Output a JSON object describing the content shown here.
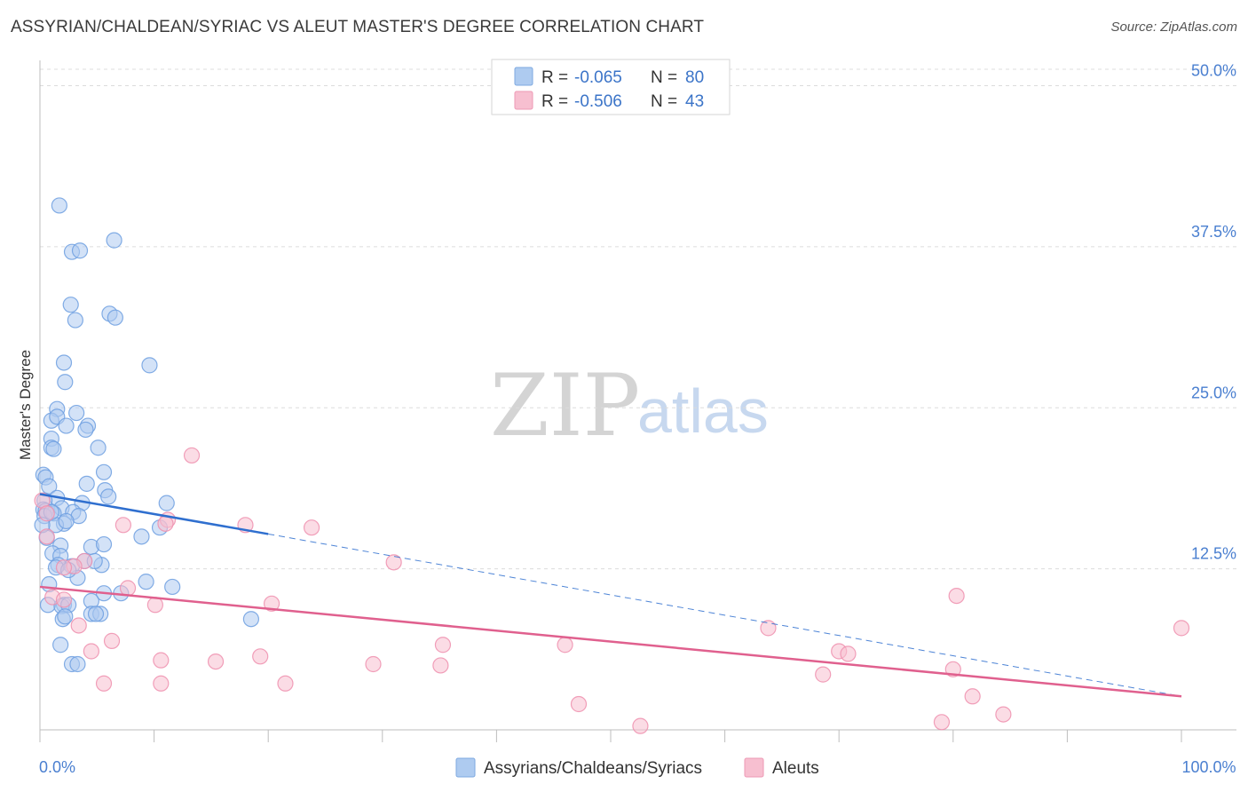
{
  "header": {
    "title": "ASSYRIAN/CHALDEAN/SYRIAC VS ALEUT MASTER'S DEGREE CORRELATION CHART",
    "source": "Source: ZipAtlas.com"
  },
  "watermark": {
    "zip": "ZIP",
    "atlas": "atlas"
  },
  "legend": {
    "rows": [
      {
        "r_label": "R = ",
        "r_value": "-0.065",
        "n_label": "N = ",
        "n_value": "80",
        "fill": "#aecbf0",
        "stroke": "#7ea9e0"
      },
      {
        "r_label": "R = ",
        "r_value": "-0.506",
        "n_label": "N = ",
        "n_value": "43",
        "fill": "#f7bfd0",
        "stroke": "#ee9ab5"
      }
    ]
  },
  "bottom_legend": {
    "items": [
      {
        "label": "Assyrians/Chaldeans/Syriacs",
        "fill": "#aecbf0",
        "stroke": "#7ea9e0"
      },
      {
        "label": "Aleuts",
        "fill": "#f7bfd0",
        "stroke": "#ee9ab5"
      }
    ]
  },
  "chart_data": {
    "type": "scatter",
    "title": "ASSYRIAN/CHALDEAN/SYRIAC VS ALEUT MASTER'S DEGREE CORRELATION CHART",
    "xlabel": "",
    "ylabel": "Master's Degree",
    "xlim": [
      0,
      100
    ],
    "ylim": [
      0,
      52
    ],
    "x_tick_labels": [
      {
        "value": 0,
        "label": "0.0%"
      },
      {
        "value": 100,
        "label": "100.0%"
      }
    ],
    "y_tick_labels": [
      {
        "value": 12.5,
        "label": "12.5%"
      },
      {
        "value": 25,
        "label": "25.0%"
      },
      {
        "value": 37.5,
        "label": "37.5%"
      },
      {
        "value": 50,
        "label": "50.0%"
      }
    ],
    "grid": true,
    "legend_position": "top-center",
    "series": [
      {
        "name": "Assyrians/Chaldeans/Syriacs",
        "color": "#6d9fe0",
        "fill": "#aecbf0",
        "trend_color": "#2f6fcf",
        "R": -0.065,
        "N": 80,
        "trend": {
          "x": [
            0,
            20
          ],
          "y": [
            18.3,
            15.2
          ]
        },
        "trend_extended": {
          "x": [
            20,
            100
          ],
          "y": [
            15.2,
            2.6
          ]
        },
        "points": [
          {
            "x": 1.7,
            "y": 40.7
          },
          {
            "x": 6.5,
            "y": 38.0
          },
          {
            "x": 2.8,
            "y": 37.1
          },
          {
            "x": 3.5,
            "y": 37.2
          },
          {
            "x": 2.7,
            "y": 33.0
          },
          {
            "x": 3.1,
            "y": 31.8
          },
          {
            "x": 6.1,
            "y": 32.3
          },
          {
            "x": 6.6,
            "y": 32.0
          },
          {
            "x": 2.1,
            "y": 28.5
          },
          {
            "x": 9.6,
            "y": 28.3
          },
          {
            "x": 2.2,
            "y": 27.0
          },
          {
            "x": 1.5,
            "y": 24.9
          },
          {
            "x": 3.2,
            "y": 24.6
          },
          {
            "x": 1.0,
            "y": 24.0
          },
          {
            "x": 1.5,
            "y": 24.3
          },
          {
            "x": 2.3,
            "y": 23.6
          },
          {
            "x": 4.2,
            "y": 23.6
          },
          {
            "x": 4.0,
            "y": 23.3
          },
          {
            "x": 1.0,
            "y": 22.6
          },
          {
            "x": 1.0,
            "y": 21.9
          },
          {
            "x": 1.2,
            "y": 21.8
          },
          {
            "x": 5.1,
            "y": 21.9
          },
          {
            "x": 0.3,
            "y": 19.8
          },
          {
            "x": 0.5,
            "y": 19.6
          },
          {
            "x": 5.6,
            "y": 20.0
          },
          {
            "x": 4.1,
            "y": 19.1
          },
          {
            "x": 0.8,
            "y": 18.9
          },
          {
            "x": 5.7,
            "y": 18.6
          },
          {
            "x": 1.5,
            "y": 18.0
          },
          {
            "x": 6.0,
            "y": 18.1
          },
          {
            "x": 0.4,
            "y": 17.8
          },
          {
            "x": 3.7,
            "y": 17.6
          },
          {
            "x": 11.1,
            "y": 17.6
          },
          {
            "x": 1.9,
            "y": 17.2
          },
          {
            "x": 0.3,
            "y": 17.1
          },
          {
            "x": 0.5,
            "y": 17.0
          },
          {
            "x": 2.9,
            "y": 16.9
          },
          {
            "x": 1.2,
            "y": 16.8
          },
          {
            "x": 3.4,
            "y": 16.6
          },
          {
            "x": 0.4,
            "y": 16.6
          },
          {
            "x": 2.1,
            "y": 16.0
          },
          {
            "x": 1.4,
            "y": 15.9
          },
          {
            "x": 2.3,
            "y": 16.2
          },
          {
            "x": 10.5,
            "y": 15.7
          },
          {
            "x": 8.9,
            "y": 15.0
          },
          {
            "x": 1.8,
            "y": 14.3
          },
          {
            "x": 4.5,
            "y": 14.2
          },
          {
            "x": 5.6,
            "y": 14.4
          },
          {
            "x": 1.1,
            "y": 13.7
          },
          {
            "x": 1.8,
            "y": 13.5
          },
          {
            "x": 3.9,
            "y": 13.1
          },
          {
            "x": 1.6,
            "y": 12.8
          },
          {
            "x": 1.4,
            "y": 12.6
          },
          {
            "x": 2.8,
            "y": 12.7
          },
          {
            "x": 5.4,
            "y": 12.8
          },
          {
            "x": 3.3,
            "y": 11.8
          },
          {
            "x": 9.3,
            "y": 11.5
          },
          {
            "x": 0.8,
            "y": 11.3
          },
          {
            "x": 11.6,
            "y": 11.1
          },
          {
            "x": 5.6,
            "y": 10.6
          },
          {
            "x": 7.1,
            "y": 10.6
          },
          {
            "x": 4.5,
            "y": 10.0
          },
          {
            "x": 0.7,
            "y": 9.7
          },
          {
            "x": 2.1,
            "y": 9.7
          },
          {
            "x": 1.9,
            "y": 9.6
          },
          {
            "x": 2.5,
            "y": 9.7
          },
          {
            "x": 4.5,
            "y": 9.0
          },
          {
            "x": 5.3,
            "y": 9.0
          },
          {
            "x": 4.9,
            "y": 9.0
          },
          {
            "x": 2.0,
            "y": 8.6
          },
          {
            "x": 2.2,
            "y": 8.8
          },
          {
            "x": 18.5,
            "y": 8.6
          },
          {
            "x": 1.8,
            "y": 6.6
          },
          {
            "x": 2.8,
            "y": 5.1
          },
          {
            "x": 3.3,
            "y": 5.1
          },
          {
            "x": 0.6,
            "y": 14.9
          },
          {
            "x": 0.2,
            "y": 15.9
          },
          {
            "x": 1.0,
            "y": 16.9
          },
          {
            "x": 2.5,
            "y": 12.4
          },
          {
            "x": 4.8,
            "y": 13.1
          }
        ]
      },
      {
        "name": "Aleuts",
        "color": "#ee8fae",
        "fill": "#f7bfd0",
        "trend_color": "#e0608e",
        "R": -0.506,
        "N": 43,
        "trend": {
          "x": [
            0,
            100
          ],
          "y": [
            11.1,
            2.6
          ]
        },
        "points": [
          {
            "x": 13.3,
            "y": 21.3
          },
          {
            "x": 0.2,
            "y": 17.8
          },
          {
            "x": 0.6,
            "y": 16.8
          },
          {
            "x": 11.2,
            "y": 16.3
          },
          {
            "x": 11.0,
            "y": 16.0
          },
          {
            "x": 7.3,
            "y": 15.9
          },
          {
            "x": 18.0,
            "y": 15.9
          },
          {
            "x": 23.8,
            "y": 15.7
          },
          {
            "x": 0.6,
            "y": 15.0
          },
          {
            "x": 3.9,
            "y": 13.1
          },
          {
            "x": 3.0,
            "y": 12.7
          },
          {
            "x": 2.1,
            "y": 12.6
          },
          {
            "x": 31.0,
            "y": 13.0
          },
          {
            "x": 7.7,
            "y": 11.0
          },
          {
            "x": 1.1,
            "y": 10.3
          },
          {
            "x": 2.1,
            "y": 10.1
          },
          {
            "x": 10.1,
            "y": 9.7
          },
          {
            "x": 20.3,
            "y": 9.8
          },
          {
            "x": 80.3,
            "y": 10.4
          },
          {
            "x": 100.0,
            "y": 7.9
          },
          {
            "x": 35.3,
            "y": 6.6
          },
          {
            "x": 46.0,
            "y": 6.6
          },
          {
            "x": 63.8,
            "y": 7.9
          },
          {
            "x": 3.4,
            "y": 8.1
          },
          {
            "x": 6.3,
            "y": 6.9
          },
          {
            "x": 4.5,
            "y": 6.1
          },
          {
            "x": 70.0,
            "y": 6.1
          },
          {
            "x": 70.8,
            "y": 5.9
          },
          {
            "x": 10.6,
            "y": 5.4
          },
          {
            "x": 15.4,
            "y": 5.3
          },
          {
            "x": 19.3,
            "y": 5.7
          },
          {
            "x": 29.2,
            "y": 5.1
          },
          {
            "x": 35.1,
            "y": 5.0
          },
          {
            "x": 80.0,
            "y": 4.7
          },
          {
            "x": 68.6,
            "y": 4.3
          },
          {
            "x": 5.6,
            "y": 3.6
          },
          {
            "x": 10.6,
            "y": 3.6
          },
          {
            "x": 21.5,
            "y": 3.6
          },
          {
            "x": 81.7,
            "y": 2.6
          },
          {
            "x": 47.2,
            "y": 2.0
          },
          {
            "x": 52.6,
            "y": 0.3
          },
          {
            "x": 79.0,
            "y": 0.6
          },
          {
            "x": 84.4,
            "y": 1.2
          }
        ]
      }
    ]
  }
}
